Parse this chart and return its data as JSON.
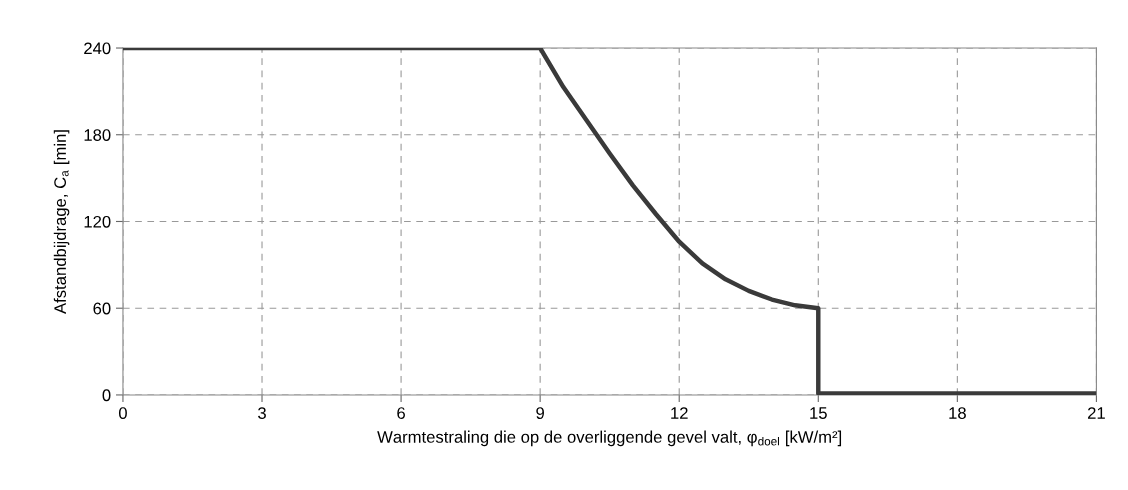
{
  "chart_data": {
    "type": "line",
    "xlabel": "Warmtestraling die op de overliggende gevel valt, φ$_{doel}$ [kW/m²]",
    "ylabel": "Afstandbijdrage, C$_{a}$ [min]",
    "series": [
      {
        "color": "#3a3a3a",
        "x": [
          0,
          9,
          9.5,
          10,
          10.5,
          11,
          11.5,
          12,
          12.5,
          13,
          13.5,
          14,
          14.5,
          15,
          15,
          21
        ],
        "values": [
          240,
          240,
          213,
          190,
          167,
          145,
          125,
          106,
          91,
          80,
          72,
          66,
          62,
          60,
          1,
          1
        ]
      }
    ],
    "xlim": [
      0,
      21
    ],
    "xticks": [
      0,
      3,
      6,
      9,
      12,
      15,
      18,
      21
    ],
    "ylim": [
      0,
      240
    ],
    "yticks": [
      0,
      60,
      120,
      180,
      240
    ],
    "grid": true,
    "line_style": "solid",
    "marker": "none"
  }
}
